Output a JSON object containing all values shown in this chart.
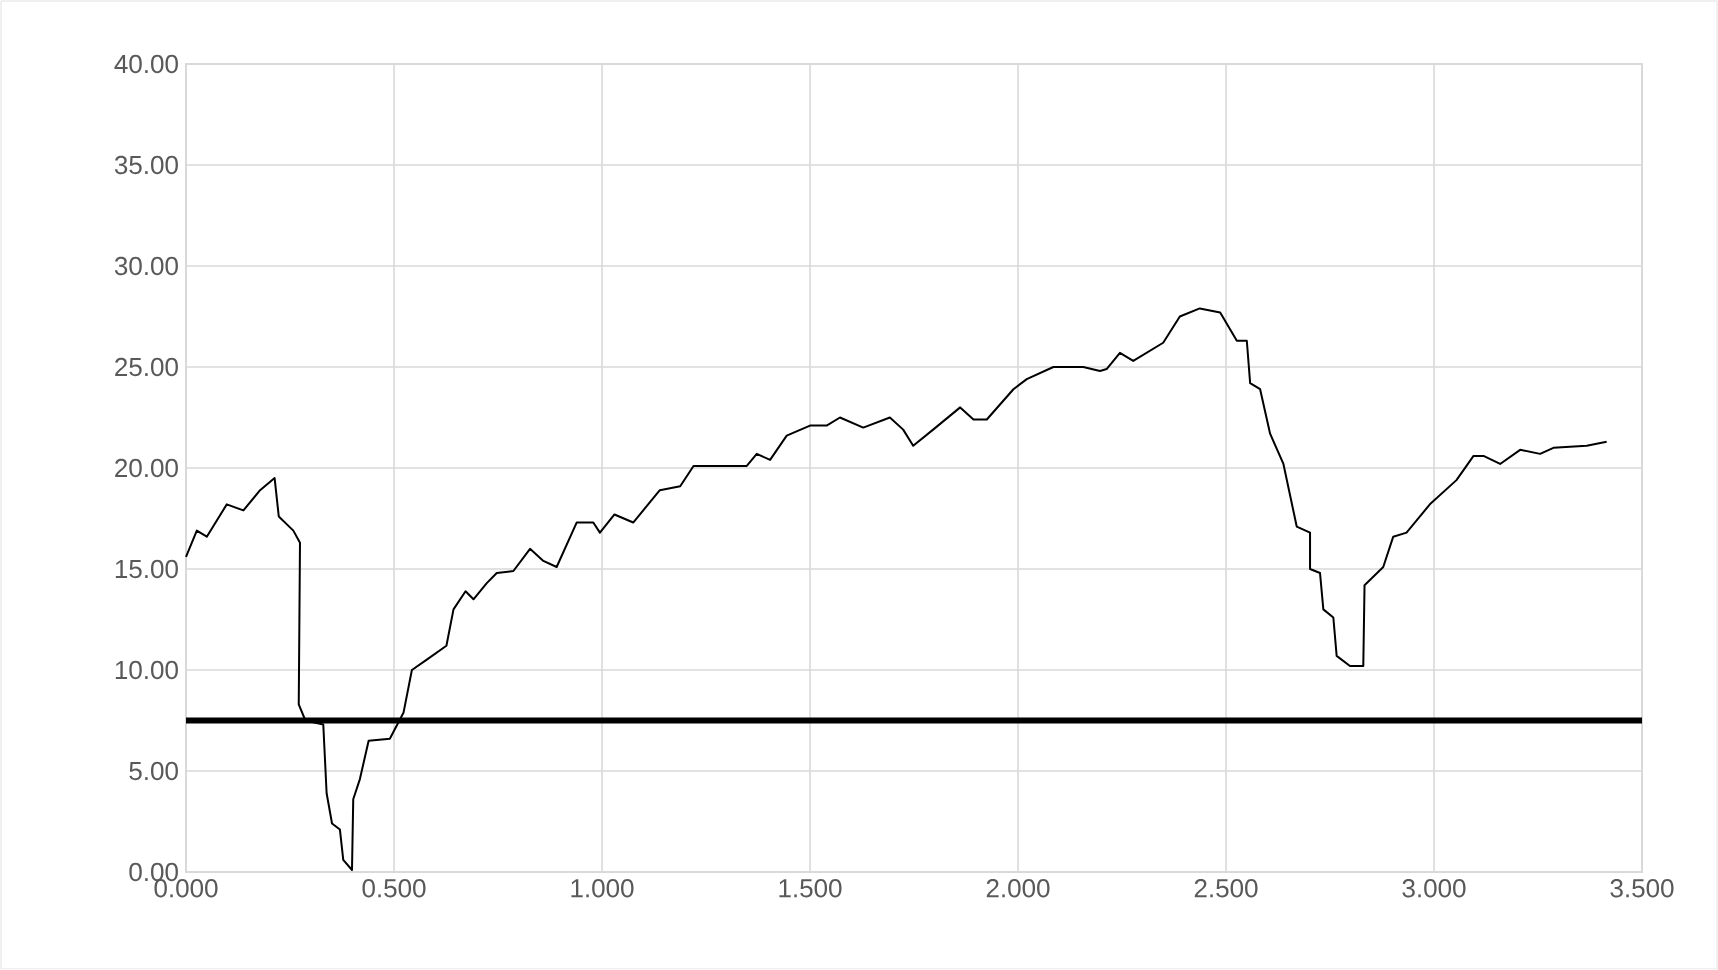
{
  "chart_data": {
    "type": "line",
    "x": [
      0.0,
      0.026,
      0.05,
      0.098,
      0.138,
      0.178,
      0.213,
      0.223,
      0.258,
      0.274,
      0.271,
      0.287,
      0.33,
      0.338,
      0.351,
      0.37,
      0.378,
      0.399,
      0.402,
      0.418,
      0.439,
      0.49,
      0.523,
      0.543,
      0.578,
      0.626,
      0.643,
      0.672,
      0.691,
      0.723,
      0.747,
      0.787,
      0.827,
      0.859,
      0.891,
      0.939,
      0.979,
      0.995,
      1.03,
      1.075,
      1.139,
      1.188,
      1.22,
      1.348,
      1.372,
      1.404,
      1.444,
      1.5,
      1.54,
      1.572,
      1.628,
      1.692,
      1.724,
      1.748,
      1.796,
      1.861,
      1.893,
      1.925,
      1.989,
      2.021,
      2.085,
      2.157,
      2.197,
      2.213,
      2.245,
      2.277,
      2.349,
      2.389,
      2.437,
      2.486,
      2.526,
      2.55,
      2.558,
      2.582,
      2.606,
      2.638,
      2.67,
      2.702,
      2.702,
      2.726,
      2.734,
      2.758,
      2.766,
      2.798,
      2.83,
      2.833,
      2.878,
      2.902,
      2.934,
      2.99,
      3.054,
      3.095,
      3.119,
      3.159,
      3.207,
      3.255,
      3.287,
      3.367,
      3.415
    ],
    "series": [
      {
        "color": "#000000",
        "values": [
          15.6,
          16.9,
          16.6,
          18.2,
          17.9,
          18.9,
          19.5,
          17.6,
          16.9,
          16.3,
          8.3,
          7.5,
          7.3,
          3.9,
          2.4,
          2.1,
          0.6,
          0.1,
          3.6,
          4.6,
          6.5,
          6.6,
          7.9,
          10.0,
          10.5,
          11.2,
          13.0,
          13.9,
          13.5,
          14.3,
          14.8,
          14.9,
          16.0,
          15.4,
          15.1,
          17.3,
          17.3,
          16.8,
          17.7,
          17.3,
          18.9,
          19.1,
          20.1,
          20.1,
          20.7,
          20.4,
          21.6,
          22.1,
          22.1,
          22.5,
          22.0,
          22.5,
          21.9,
          21.1,
          21.9,
          23.0,
          22.4,
          22.4,
          23.9,
          24.4,
          25.0,
          25.0,
          24.8,
          24.9,
          25.7,
          25.3,
          26.2,
          27.5,
          27.9,
          27.7,
          26.3,
          26.3,
          24.2,
          23.9,
          21.7,
          20.2,
          17.1,
          16.8,
          15.0,
          14.8,
          13.0,
          12.6,
          10.7,
          10.2,
          10.2,
          14.2,
          15.1,
          16.6,
          16.8,
          18.2,
          19.4,
          20.6,
          20.6,
          20.2,
          20.9,
          20.7,
          21.0,
          21.1,
          21.3
        ]
      }
    ],
    "xlim": [
      0,
      3.5
    ],
    "ylim": [
      0,
      40
    ],
    "xticks": [
      {
        "value": 0,
        "label": "0.000"
      },
      {
        "value": 0.5,
        "label": "0.500"
      },
      {
        "value": 1,
        "label": "1.000"
      },
      {
        "value": 1.5,
        "label": "1.500"
      },
      {
        "value": 2,
        "label": "2.000"
      },
      {
        "value": 2.5,
        "label": "2.500"
      },
      {
        "value": 3,
        "label": "3.000"
      },
      {
        "value": 3.5,
        "label": "3.500"
      }
    ],
    "yticks": [
      {
        "value": 0,
        "label": "0.00"
      },
      {
        "value": 5,
        "label": "5.00"
      },
      {
        "value": 10,
        "label": "10.00"
      },
      {
        "value": 15,
        "label": "15.00"
      },
      {
        "value": 20,
        "label": "20.00"
      },
      {
        "value": 25,
        "label": "25.00"
      },
      {
        "value": 30,
        "label": "30.00"
      },
      {
        "value": 35,
        "label": "35.00"
      },
      {
        "value": 40,
        "label": "40.00"
      }
    ],
    "ref_lines": [
      {
        "axis": "y",
        "value": 7.5,
        "color": "#000000"
      }
    ],
    "grid": true,
    "marker": "none",
    "line_style": "solid"
  }
}
